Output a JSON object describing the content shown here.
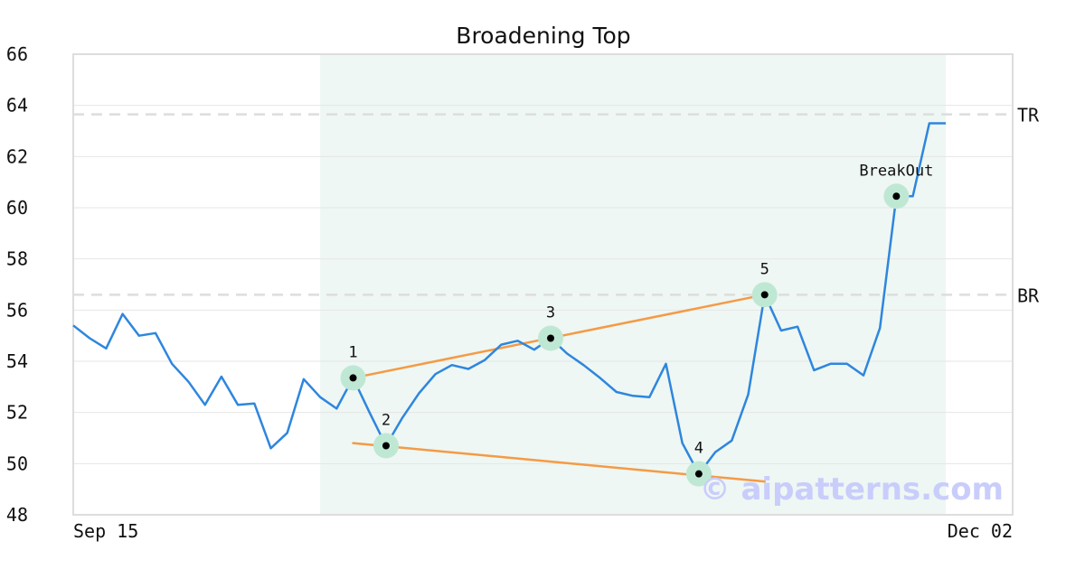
{
  "chart_data": {
    "type": "line",
    "title": "Broadening Top",
    "xlabel": "",
    "ylabel": "",
    "ylim": [
      48,
      66
    ],
    "y_ticks": [
      48,
      50,
      52,
      54,
      56,
      58,
      60,
      62,
      64,
      66
    ],
    "x_tick_labels": [
      {
        "index": 0,
        "label": "Sep 15"
      },
      {
        "index": 53,
        "label": "Dec 02"
      }
    ],
    "grid": "horizontal",
    "series": [
      {
        "color": "#2e86de",
        "values": [
          55.4,
          54.9,
          54.5,
          55.85,
          55.0,
          55.1,
          53.9,
          53.2,
          52.3,
          53.4,
          52.3,
          52.35,
          50.6,
          51.2,
          53.3,
          52.6,
          52.15,
          53.35,
          52.0,
          50.7,
          51.8,
          52.75,
          53.5,
          53.85,
          53.7,
          54.05,
          54.65,
          54.8,
          54.45,
          54.9,
          54.3,
          53.85,
          53.35,
          52.8,
          52.65,
          52.6,
          53.9,
          50.8,
          49.6,
          50.45,
          50.9,
          52.7,
          56.6,
          55.2,
          55.35,
          53.65,
          53.9,
          53.9,
          53.45,
          55.3,
          60.45,
          60.45,
          63.3,
          63.3
        ]
      }
    ],
    "highlight_region": {
      "start_index": 15,
      "end_index": 53,
      "color": "#eef7f3"
    },
    "pattern_points": [
      {
        "label": "1",
        "index": 17,
        "value": 53.35
      },
      {
        "label": "2",
        "index": 19,
        "value": 50.7
      },
      {
        "label": "3",
        "index": 29,
        "value": 54.9
      },
      {
        "label": "4",
        "index": 38,
        "value": 49.6
      },
      {
        "label": "5",
        "index": 42,
        "value": 56.6
      },
      {
        "label": "BreakOut",
        "index": 50,
        "value": 60.45
      }
    ],
    "trend_lines": [
      {
        "from": {
          "index": 17,
          "value": 53.35
        },
        "to": {
          "index": 42,
          "value": 56.6
        },
        "color": "#f59a45"
      },
      {
        "from": {
          "index": 17,
          "value": 50.8
        },
        "to": {
          "index": 42,
          "value": 49.3
        },
        "color": "#f59a45"
      }
    ],
    "reference_lines": [
      {
        "label": "TR",
        "value": 63.65,
        "style": "dashed"
      },
      {
        "label": "BR",
        "value": 56.6,
        "style": "dashed"
      }
    ],
    "watermark": "© aipatterns.com"
  },
  "colors": {
    "line": "#2e86de",
    "trend": "#f59a45",
    "marker_halo": "#bfe8d4",
    "marker_dot": "#000000",
    "grid": "#e6e6e6",
    "reference": "#dddddd",
    "frame": "#dddddd"
  }
}
